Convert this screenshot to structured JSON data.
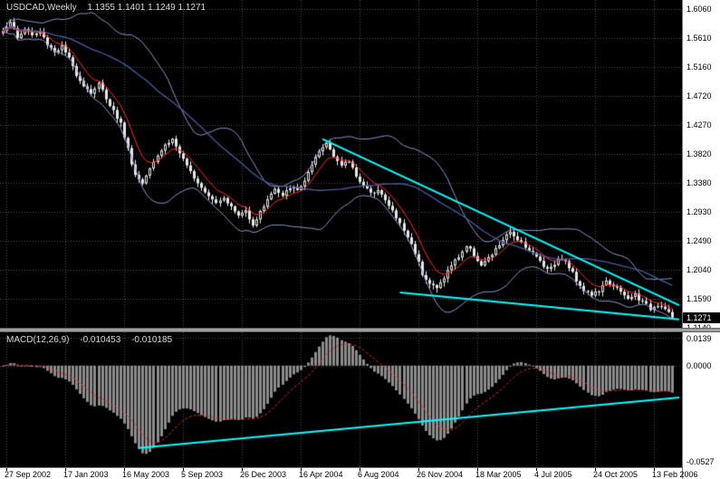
{
  "header": {
    "title": "USDCAD,Weekly",
    "quote": "1.1355 1.1401 1.1249 1.1271"
  },
  "colors": {
    "background": "#000000",
    "grid": "#4c4c4c",
    "bull_candle": "#000000",
    "bear_candle": "#e8e8e8",
    "candle_outline": "#e8e8e8",
    "ma_fast": "#ff2e2e",
    "ma_slow": "#4a5a9e",
    "bollinger": "#8e94c9",
    "trendline": "#00ffff",
    "macd_histogram": "#8c8c8c",
    "macd_signal": "#dd2a2a",
    "axis_background": "#ffffff",
    "axis_text": "#000000",
    "price_tag_background": "#000000",
    "price_tag_text": "#ffffff",
    "header_text": "#d8d8d8"
  },
  "chart_data": [
    {
      "type": "candlestick",
      "symbol": "USDCAD",
      "timeframe": "Weekly",
      "ohlc_display": {
        "open": 1.1355,
        "high": 1.1401,
        "low": 1.1249,
        "close": 1.1271
      },
      "current_price": "1.1271",
      "weeks": 183,
      "y_axis": {
        "top_value": 1.606,
        "step": 0.045,
        "tick_labels": [
          "1.6060",
          "1.5610",
          "1.5160",
          "1.4720",
          "1.4270",
          "1.3820",
          "1.3380",
          "1.2930",
          "1.2490",
          "1.2040",
          "1.1590",
          "1.1140"
        ]
      },
      "x_axis": {
        "tick_weeks": [
          1,
          17,
          33,
          49,
          65,
          81,
          97,
          113,
          129,
          145,
          161,
          177
        ],
        "tick_labels": [
          "27 Sep 2002",
          "17 Jan 2003",
          "16 May 2003",
          "5 Sep 2003",
          "26 Dec 2003",
          "16 Apr 2004",
          "6 Aug 2004",
          "26 Nov 2004",
          "18 Mar 2005",
          "4 Jul 2005",
          "24 Oct 2005",
          "13 Feb 2006"
        ]
      },
      "overlays": [
        {
          "name": "ma-fast",
          "type": "ema",
          "period": 8
        },
        {
          "name": "ma-slow",
          "type": "sma",
          "period": 40
        },
        {
          "name": "bollinger-bands",
          "period": 20,
          "deviation": 2
        }
      ],
      "trendlines": [
        {
          "from_week": 87,
          "from_price": 1.404,
          "to_week": 184,
          "to_price": 1.146
        },
        {
          "from_week": 108,
          "from_price": 1.166,
          "to_week": 184,
          "to_price": 1.124
        }
      ],
      "close_anchors": [
        [
          0,
          1.572
        ],
        [
          2,
          1.588
        ],
        [
          4,
          1.56
        ],
        [
          6,
          1.576
        ],
        [
          8,
          1.565
        ],
        [
          10,
          1.57
        ],
        [
          12,
          1.552
        ],
        [
          14,
          1.54
        ],
        [
          16,
          1.548
        ],
        [
          18,
          1.528
        ],
        [
          20,
          1.505
        ],
        [
          22,
          1.488
        ],
        [
          24,
          1.476
        ],
        [
          26,
          1.49
        ],
        [
          28,
          1.468
        ],
        [
          30,
          1.448
        ],
        [
          32,
          1.428
        ],
        [
          34,
          1.388
        ],
        [
          36,
          1.348
        ],
        [
          38,
          1.336
        ],
        [
          40,
          1.362
        ],
        [
          42,
          1.38
        ],
        [
          44,
          1.395
        ],
        [
          46,
          1.404
        ],
        [
          48,
          1.382
        ],
        [
          50,
          1.36
        ],
        [
          52,
          1.346
        ],
        [
          54,
          1.33
        ],
        [
          56,
          1.318
        ],
        [
          58,
          1.306
        ],
        [
          60,
          1.315
        ],
        [
          62,
          1.298
        ],
        [
          64,
          1.285
        ],
        [
          66,
          1.293
        ],
        [
          68,
          1.272
        ],
        [
          70,
          1.29
        ],
        [
          72,
          1.312
        ],
        [
          74,
          1.326
        ],
        [
          76,
          1.314
        ],
        [
          78,
          1.33
        ],
        [
          80,
          1.324
        ],
        [
          82,
          1.34
        ],
        [
          84,
          1.362
        ],
        [
          86,
          1.384
        ],
        [
          88,
          1.398
        ],
        [
          90,
          1.38
        ],
        [
          92,
          1.362
        ],
        [
          94,
          1.37
        ],
        [
          96,
          1.348
        ],
        [
          98,
          1.332
        ],
        [
          100,
          1.318
        ],
        [
          102,
          1.328
        ],
        [
          104,
          1.308
        ],
        [
          106,
          1.292
        ],
        [
          108,
          1.272
        ],
        [
          110,
          1.252
        ],
        [
          112,
          1.228
        ],
        [
          114,
          1.196
        ],
        [
          116,
          1.18
        ],
        [
          118,
          1.172
        ],
        [
          120,
          1.19
        ],
        [
          122,
          1.208
        ],
        [
          124,
          1.222
        ],
        [
          126,
          1.238
        ],
        [
          128,
          1.225
        ],
        [
          130,
          1.208
        ],
        [
          132,
          1.218
        ],
        [
          134,
          1.232
        ],
        [
          136,
          1.248
        ],
        [
          138,
          1.258
        ],
        [
          140,
          1.25
        ],
        [
          142,
          1.238
        ],
        [
          144,
          1.226
        ],
        [
          146,
          1.215
        ],
        [
          148,
          1.202
        ],
        [
          150,
          1.212
        ],
        [
          152,
          1.22
        ],
        [
          154,
          1.205
        ],
        [
          156,
          1.186
        ],
        [
          158,
          1.17
        ],
        [
          160,
          1.162
        ],
        [
          162,
          1.168
        ],
        [
          164,
          1.182
        ],
        [
          166,
          1.178
        ],
        [
          168,
          1.165
        ],
        [
          170,
          1.155
        ],
        [
          172,
          1.163
        ],
        [
          174,
          1.15
        ],
        [
          176,
          1.141
        ],
        [
          178,
          1.148
        ],
        [
          180,
          1.14
        ],
        [
          181,
          1.1355
        ],
        [
          182,
          1.1271
        ]
      ]
    },
    {
      "type": "macd",
      "label": "MACD(12,26,9)",
      "params": {
        "fast": 12,
        "slow": 26,
        "signal": 9
      },
      "value_main": "-0.010453",
      "value_signal": "-0.010185",
      "y_axis": {
        "tick_labels": [
          "0.0139",
          "0.0000",
          "-0.0527"
        ]
      },
      "trendlines": [
        {
          "from_week": 37,
          "from_value": -0.0465,
          "to_week": 184,
          "to_value": -0.018
        }
      ]
    }
  ]
}
